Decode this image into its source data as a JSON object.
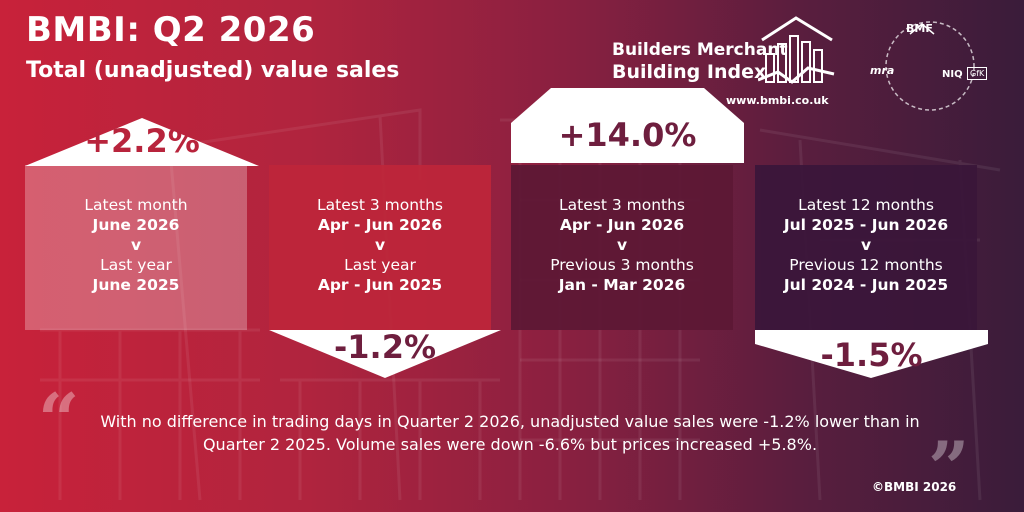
{
  "header": {
    "title": "BMBI: Q2 2026",
    "subtitle": "Total (unadjusted) value sales"
  },
  "logo": {
    "line1": "Builders Merchant",
    "line2": "Building Index",
    "url": "www.bmbi.co.uk"
  },
  "partners": {
    "bmf": "BMF",
    "mra": "mra",
    "niq": "NIQ",
    "gfk": "GfK"
  },
  "panels": [
    {
      "change": "+2.2%",
      "line1": "Latest month",
      "period1": "June 2026",
      "vs": "v",
      "line2": "Last year",
      "period2": "June 2025"
    },
    {
      "change": "-1.2%",
      "line1": "Latest 3 months",
      "period1": "Apr - Jun 2026",
      "vs": "v",
      "line2": "Last year",
      "period2": "Apr - Jun 2025"
    },
    {
      "change": "+14.0%",
      "line1": "Latest 3 months",
      "period1": "Apr - Jun 2026",
      "vs": "v",
      "line2": "Previous 3 months",
      "period2": "Jan - Mar 2026"
    },
    {
      "change": "-1.5%",
      "line1": "Latest 12 months",
      "period1": "Jul 2025 - Jun 2026",
      "vs": "v",
      "line2": "Previous 12 months",
      "period2": "Jul 2024 - Jun 2025"
    }
  ],
  "quote": {
    "line1": "With no difference in trading days in Quarter 2 2026, unadjusted value sales were -1.2% lower than in",
    "line2": "Quarter 2 2025. Volume sales were down -6.6% but prices increased +5.8%.",
    "open_mark": "“",
    "close_mark": "”"
  },
  "footer": {
    "copyright": "©BMBI 2026"
  },
  "colors": {
    "background_left": "#c8223a",
    "background_right": "#3a1c3a",
    "accent_red": "#b8243c",
    "accent_plum": "#6e1e3e"
  }
}
